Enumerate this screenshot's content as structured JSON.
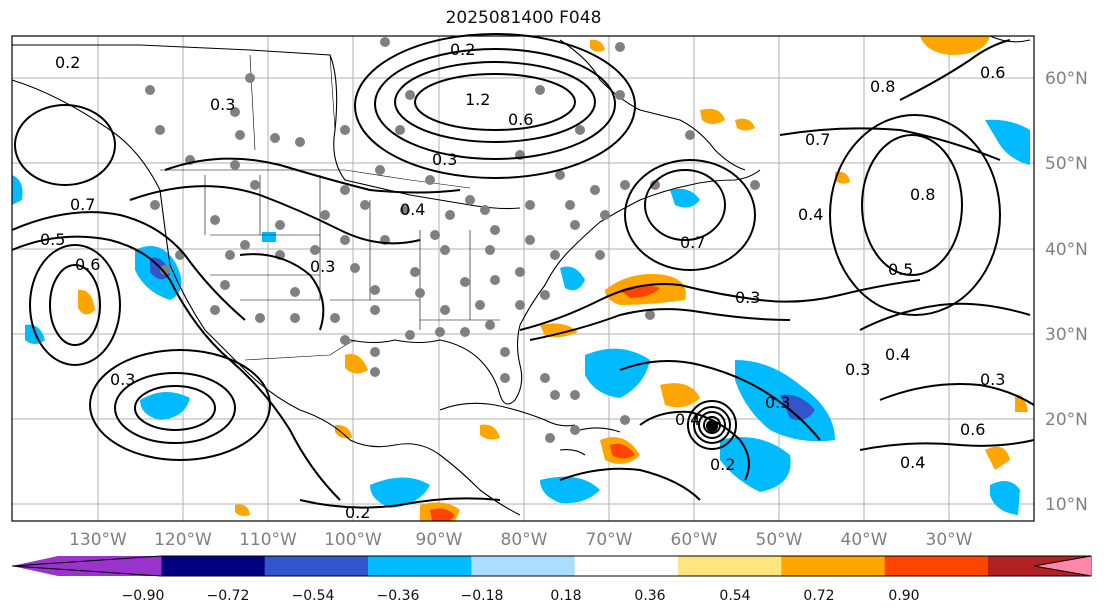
{
  "title": "2025081400 F048",
  "lon_labels": [
    "130°W",
    "120°W",
    "110°W",
    "100°W",
    "90°W",
    "80°W",
    "70°W",
    "60°W",
    "50°W",
    "40°W",
    "30°W"
  ],
  "lat_labels": [
    "60°N",
    "50°N",
    "40°N",
    "30°N",
    "20°N",
    "10°N"
  ],
  "colorbar": {
    "labels": [
      "−0.90",
      "−0.72",
      "−0.54",
      "−0.36",
      "−0.18",
      "0.18",
      "0.36",
      "0.54",
      "0.72",
      "0.90"
    ],
    "colors": [
      "#9933cc",
      "#000080",
      "#3355cc",
      "#00bbff",
      "#aaddff",
      "#ffffff",
      "#ffe580",
      "#ffa500",
      "#ff4400",
      "#b22222",
      "#ff88aa"
    ]
  },
  "contour_labels": [
    "0.2",
    "0.3",
    "0.2",
    "1.2",
    "0.6",
    "0.3",
    "0.4",
    "0.7",
    "0.5",
    "0.6",
    "0.3",
    "0.3",
    "0.2",
    "0.8",
    "0.7",
    "0.6",
    "0.8",
    "0.5",
    "0.4",
    "0.3",
    "0.2",
    "0.4",
    "0.3",
    "0.4",
    "0.6",
    "0.3",
    "0.7",
    "0.3",
    "0.4"
  ],
  "colors": {
    "land": "#000000",
    "grid": "#b0b0b0",
    "contour": "#000000",
    "station": "#808080"
  }
}
